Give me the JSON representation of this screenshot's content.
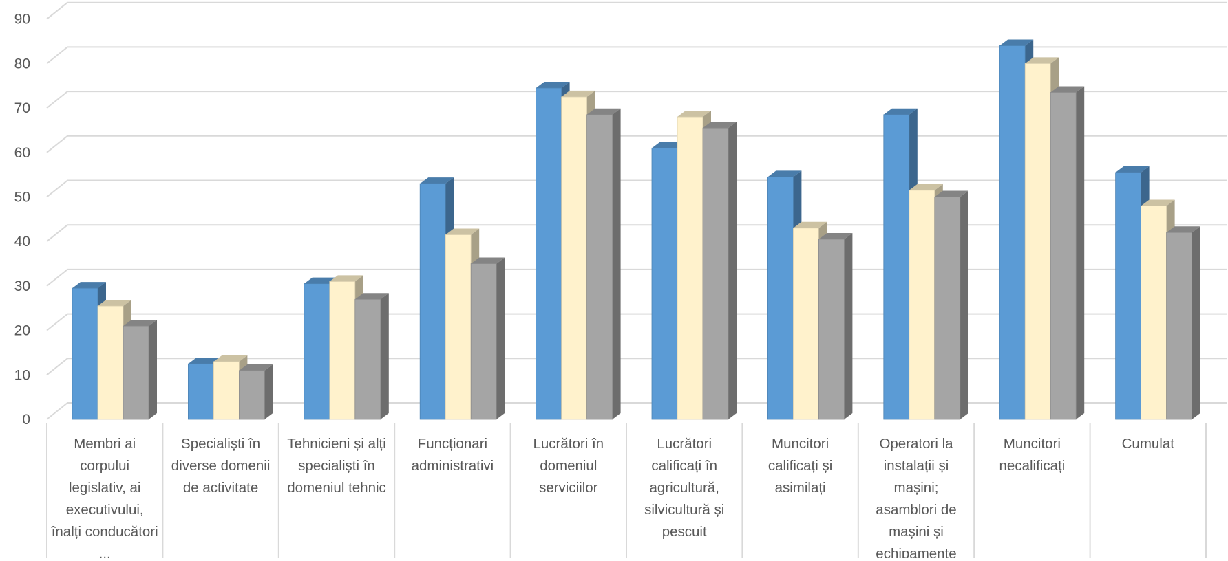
{
  "chart_data": {
    "type": "bar",
    "variant": "3d-clustered-column",
    "categories": [
      "Membri ai corpului legislativ, ai executivului, înalți conducători ...",
      "Specialiști în diverse domenii de activitate",
      "Tehnicieni și alți specialiști în domeniul tehnic",
      "Funcționari administrativi",
      "Lucrători în domeniul serviciilor",
      "Lucrători calificați în agricultură, silvicultură și pescuit",
      "Muncitori calificați și asimilați",
      "Operatori la instalații și mașini; asamblori de mașini și echipamente",
      "Muncitori necalificați",
      "Cumulat"
    ],
    "series": [
      {
        "color": "#5B9BD5",
        "values": [
          29.5,
          12.5,
          30.5,
          53,
          74.5,
          61,
          54.5,
          68.5,
          84,
          55.5
        ]
      },
      {
        "color": "#FFF2CC",
        "values": [
          25.5,
          13,
          31,
          41.5,
          72.5,
          68,
          43,
          51.5,
          80,
          48
        ]
      },
      {
        "color": "#A5A5A5",
        "values": [
          21,
          11,
          27,
          35,
          68.5,
          65.5,
          40.5,
          50,
          73.5,
          42
        ]
      }
    ],
    "yticks": [
      "0",
      "10",
      "20",
      "30",
      "40",
      "50",
      "60",
      "70",
      "80",
      "90"
    ],
    "ylim": [
      0,
      90
    ],
    "grid": true,
    "legend": "none"
  }
}
